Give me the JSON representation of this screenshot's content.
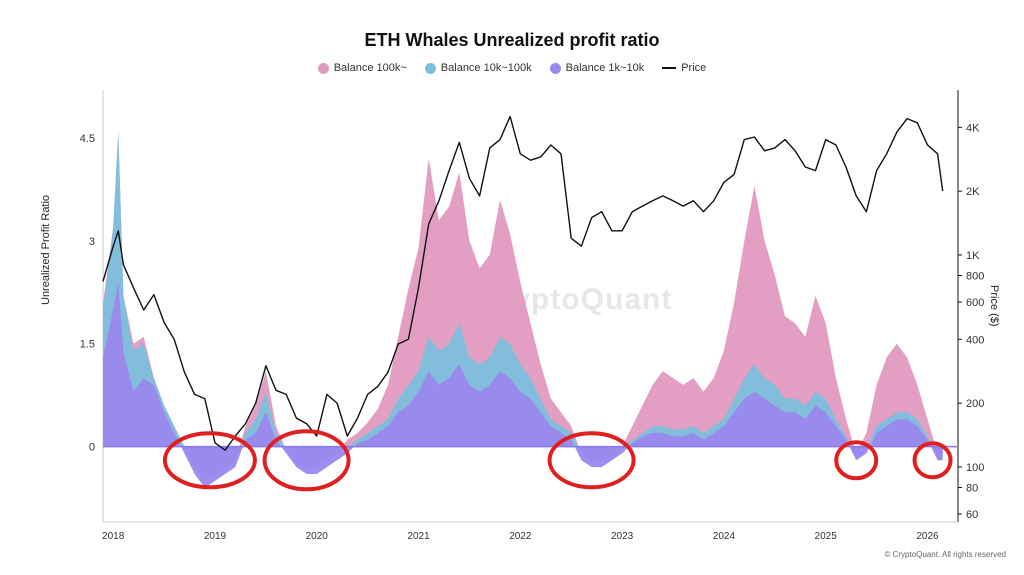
{
  "chart_data": {
    "type": "area",
    "title": "ETH Whales Unrealized profit ratio",
    "ylabel": "Unrealized Profit Ratio",
    "y2label": "Price ($)",
    "credit": "© CryptoQuant. All rights reserved",
    "watermark": "CryptoQuant",
    "ylim": [
      -1.1,
      5.2
    ],
    "y_ticks": [
      0,
      1.5,
      3,
      4.5
    ],
    "y_tick_labels": [
      "0",
      "1.5",
      "3",
      "4.5"
    ],
    "y2_scale": "log",
    "y2lim": [
      55,
      6000
    ],
    "y2_ticks": [
      60,
      80,
      100,
      200,
      400,
      600,
      800,
      1000,
      2000,
      4000
    ],
    "y2_tick_labels": [
      "60",
      "80",
      "100",
      "200",
      "400",
      "600",
      "800",
      "1K",
      "2K",
      "4K"
    ],
    "x_range": [
      2017.9,
      2026.3
    ],
    "x_ticks": [
      2018,
      2019,
      2020,
      2021,
      2022,
      2023,
      2024,
      2025,
      2026
    ],
    "x_tick_labels": [
      "2018",
      "2019",
      "2020",
      "2021",
      "2022",
      "2023",
      "2024",
      "2025",
      "2026"
    ],
    "legend": [
      {
        "name": "Balance 100k~",
        "color": "#e29ac0"
      },
      {
        "name": "Balance 10k~100k",
        "color": "#7cc0dd"
      },
      {
        "name": "Balance 1k~10k",
        "color": "#9a88ee"
      },
      {
        "name": "Price",
        "color": "#111111"
      }
    ],
    "x": [
      2017.9,
      2018.0,
      2018.05,
      2018.1,
      2018.2,
      2018.3,
      2018.4,
      2018.5,
      2018.6,
      2018.7,
      2018.8,
      2018.9,
      2019.0,
      2019.1,
      2019.2,
      2019.3,
      2019.4,
      2019.5,
      2019.6,
      2019.7,
      2019.8,
      2019.9,
      2020.0,
      2020.1,
      2020.2,
      2020.3,
      2020.4,
      2020.5,
      2020.6,
      2020.7,
      2020.8,
      2020.9,
      2021.0,
      2021.1,
      2021.2,
      2021.3,
      2021.4,
      2021.5,
      2021.6,
      2021.7,
      2021.8,
      2021.9,
      2022.0,
      2022.1,
      2022.2,
      2022.3,
      2022.4,
      2022.5,
      2022.6,
      2022.7,
      2022.8,
      2022.9,
      2023.0,
      2023.1,
      2023.2,
      2023.3,
      2023.4,
      2023.5,
      2023.6,
      2023.7,
      2023.8,
      2023.9,
      2024.0,
      2024.1,
      2024.2,
      2024.3,
      2024.4,
      2024.5,
      2024.6,
      2024.7,
      2024.8,
      2024.9,
      2025.0,
      2025.1,
      2025.2,
      2025.3,
      2025.4,
      2025.5,
      2025.6,
      2025.7,
      2025.8,
      2025.9,
      2026.0,
      2026.1,
      2026.15
    ],
    "series": [
      {
        "name": "Balance 1k~10k",
        "values": [
          1.3,
          2.0,
          2.4,
          1.4,
          0.8,
          1.0,
          0.9,
          0.5,
          0.2,
          -0.1,
          -0.4,
          -0.6,
          -0.5,
          -0.4,
          -0.3,
          0.1,
          0.2,
          0.5,
          0.1,
          -0.1,
          -0.3,
          -0.4,
          -0.4,
          -0.3,
          -0.2,
          -0.1,
          0.05,
          0.1,
          0.2,
          0.3,
          0.5,
          0.6,
          0.8,
          1.1,
          0.9,
          1.0,
          1.2,
          0.9,
          0.8,
          0.9,
          1.1,
          1.0,
          0.8,
          0.7,
          0.5,
          0.3,
          0.2,
          0.1,
          -0.2,
          -0.3,
          -0.3,
          -0.2,
          -0.1,
          0.05,
          0.15,
          0.2,
          0.2,
          0.15,
          0.15,
          0.2,
          0.1,
          0.2,
          0.3,
          0.5,
          0.7,
          0.8,
          0.7,
          0.6,
          0.5,
          0.5,
          0.4,
          0.6,
          0.5,
          0.3,
          0.1,
          -0.2,
          -0.1,
          0.2,
          0.3,
          0.4,
          0.4,
          0.3,
          0.1,
          -0.2,
          -0.2
        ]
      },
      {
        "name": "Balance 10k~100k",
        "values": [
          2.0,
          3.2,
          4.6,
          2.2,
          1.4,
          1.5,
          1.0,
          0.6,
          0.3,
          0.0,
          -0.3,
          -0.5,
          -0.4,
          -0.3,
          -0.2,
          0.2,
          0.4,
          0.8,
          0.2,
          -0.05,
          -0.25,
          -0.3,
          -0.3,
          -0.2,
          -0.1,
          0.0,
          0.1,
          0.2,
          0.3,
          0.4,
          0.7,
          0.9,
          1.1,
          1.6,
          1.4,
          1.5,
          1.8,
          1.3,
          1.2,
          1.3,
          1.6,
          1.5,
          1.2,
          1.0,
          0.7,
          0.4,
          0.3,
          0.2,
          -0.1,
          -0.2,
          -0.2,
          -0.15,
          -0.05,
          0.1,
          0.2,
          0.3,
          0.3,
          0.25,
          0.25,
          0.3,
          0.2,
          0.3,
          0.4,
          0.7,
          1.0,
          1.2,
          1.0,
          0.9,
          0.7,
          0.7,
          0.6,
          0.8,
          0.7,
          0.4,
          0.15,
          -0.15,
          -0.05,
          0.3,
          0.4,
          0.5,
          0.5,
          0.4,
          0.15,
          -0.15,
          -0.15
        ]
      },
      {
        "name": "Balance 100k~",
        "values": [
          2.1,
          3.2,
          4.6,
          2.2,
          1.5,
          1.6,
          1.0,
          0.6,
          0.3,
          0.0,
          -0.3,
          -0.5,
          -0.4,
          -0.3,
          -0.2,
          0.3,
          0.6,
          1.1,
          0.3,
          -0.05,
          -0.25,
          -0.3,
          -0.3,
          -0.2,
          -0.1,
          0.1,
          0.2,
          0.35,
          0.55,
          0.9,
          1.6,
          2.3,
          2.9,
          4.2,
          3.3,
          3.5,
          4.0,
          3.0,
          2.6,
          2.8,
          3.6,
          3.1,
          2.4,
          1.8,
          1.2,
          0.7,
          0.5,
          0.3,
          -0.1,
          -0.2,
          -0.2,
          -0.1,
          0.0,
          0.3,
          0.6,
          0.9,
          1.1,
          1.0,
          0.9,
          1.0,
          0.8,
          1.0,
          1.4,
          2.1,
          3.0,
          3.8,
          3.0,
          2.5,
          1.9,
          1.8,
          1.6,
          2.2,
          1.8,
          1.0,
          0.4,
          -0.1,
          0.2,
          0.9,
          1.3,
          1.5,
          1.3,
          0.9,
          0.4,
          -0.1,
          -0.1
        ]
      },
      {
        "name": "Price",
        "values": [
          750,
          1100,
          1300,
          900,
          700,
          550,
          650,
          480,
          400,
          280,
          220,
          210,
          130,
          120,
          140,
          160,
          200,
          300,
          230,
          220,
          170,
          160,
          140,
          220,
          200,
          140,
          170,
          220,
          240,
          280,
          380,
          400,
          700,
          1400,
          1800,
          2500,
          3400,
          2300,
          1900,
          3200,
          3500,
          4500,
          3000,
          2800,
          2900,
          3300,
          3000,
          1200,
          1100,
          1500,
          1600,
          1300,
          1300,
          1600,
          1700,
          1800,
          1900,
          1800,
          1700,
          1800,
          1600,
          1800,
          2200,
          2400,
          3500,
          3600,
          3100,
          3200,
          3500,
          3100,
          2600,
          2500,
          3500,
          3300,
          2600,
          1900,
          1600,
          2500,
          3000,
          3800,
          4400,
          4200,
          3300,
          3000,
          2000
        ]
      }
    ]
  }
}
